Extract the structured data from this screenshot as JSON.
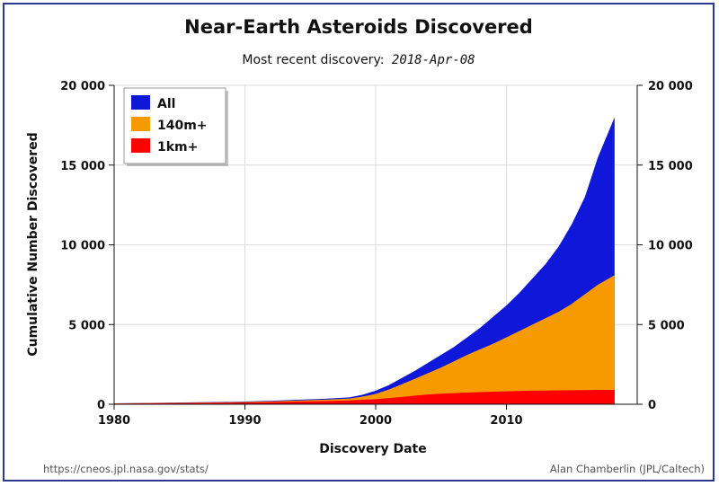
{
  "chart_data": {
    "type": "area",
    "title": "Near-Earth Asteroids Discovered",
    "subtitle_prefix": "Most recent discovery:",
    "subtitle_date": "2018-Apr-08",
    "xlabel": "Discovery Date",
    "ylabel": "Cumulative Number Discovered",
    "xlim": [
      1980,
      2020
    ],
    "ylim": [
      0,
      20000
    ],
    "x_ticks": [
      1980,
      1990,
      2000,
      2010
    ],
    "x_tick_labels": [
      "1980",
      "1990",
      "2000",
      "2010"
    ],
    "y_ticks": [
      0,
      5000,
      10000,
      15000,
      20000
    ],
    "y_tick_labels": [
      "0",
      "5 000",
      "10 000",
      "15 000",
      "20 000"
    ],
    "grid": true,
    "legend_position": "top-left",
    "x": [
      1980,
      1982,
      1984,
      1986,
      1988,
      1990,
      1992,
      1994,
      1996,
      1998,
      1999,
      2000,
      2001,
      2002,
      2003,
      2004,
      2005,
      2006,
      2007,
      2008,
      2009,
      2010,
      2011,
      2012,
      2013,
      2014,
      2015,
      2016,
      2017,
      2018.27
    ],
    "series": [
      {
        "name": "All",
        "color": "#0f17d8",
        "values": [
          60,
          80,
          100,
          120,
          140,
          170,
          220,
          280,
          340,
          430,
          600,
          850,
          1200,
          1650,
          2100,
          2600,
          3100,
          3600,
          4200,
          4800,
          5500,
          6200,
          7000,
          7900,
          8800,
          9900,
          11300,
          13000,
          15500,
          18000
        ]
      },
      {
        "name": "140m+",
        "color": "#f79a00",
        "values": [
          50,
          70,
          85,
          100,
          120,
          140,
          180,
          230,
          280,
          360,
          480,
          650,
          920,
          1250,
          1600,
          1950,
          2300,
          2700,
          3100,
          3450,
          3800,
          4200,
          4600,
          5000,
          5400,
          5800,
          6300,
          6900,
          7500,
          8100
        ]
      },
      {
        "name": "1km+",
        "color": "#ff0000",
        "values": [
          40,
          55,
          70,
          80,
          95,
          110,
          140,
          170,
          200,
          240,
          280,
          320,
          390,
          460,
          540,
          610,
          660,
          700,
          730,
          760,
          790,
          810,
          830,
          850,
          860,
          870,
          880,
          890,
          900,
          900
        ]
      }
    ]
  },
  "footer": {
    "source_url": "https://cneos.jpl.nasa.gov/stats/",
    "credit": "Alan Chamberlin (JPL/Caltech)"
  }
}
